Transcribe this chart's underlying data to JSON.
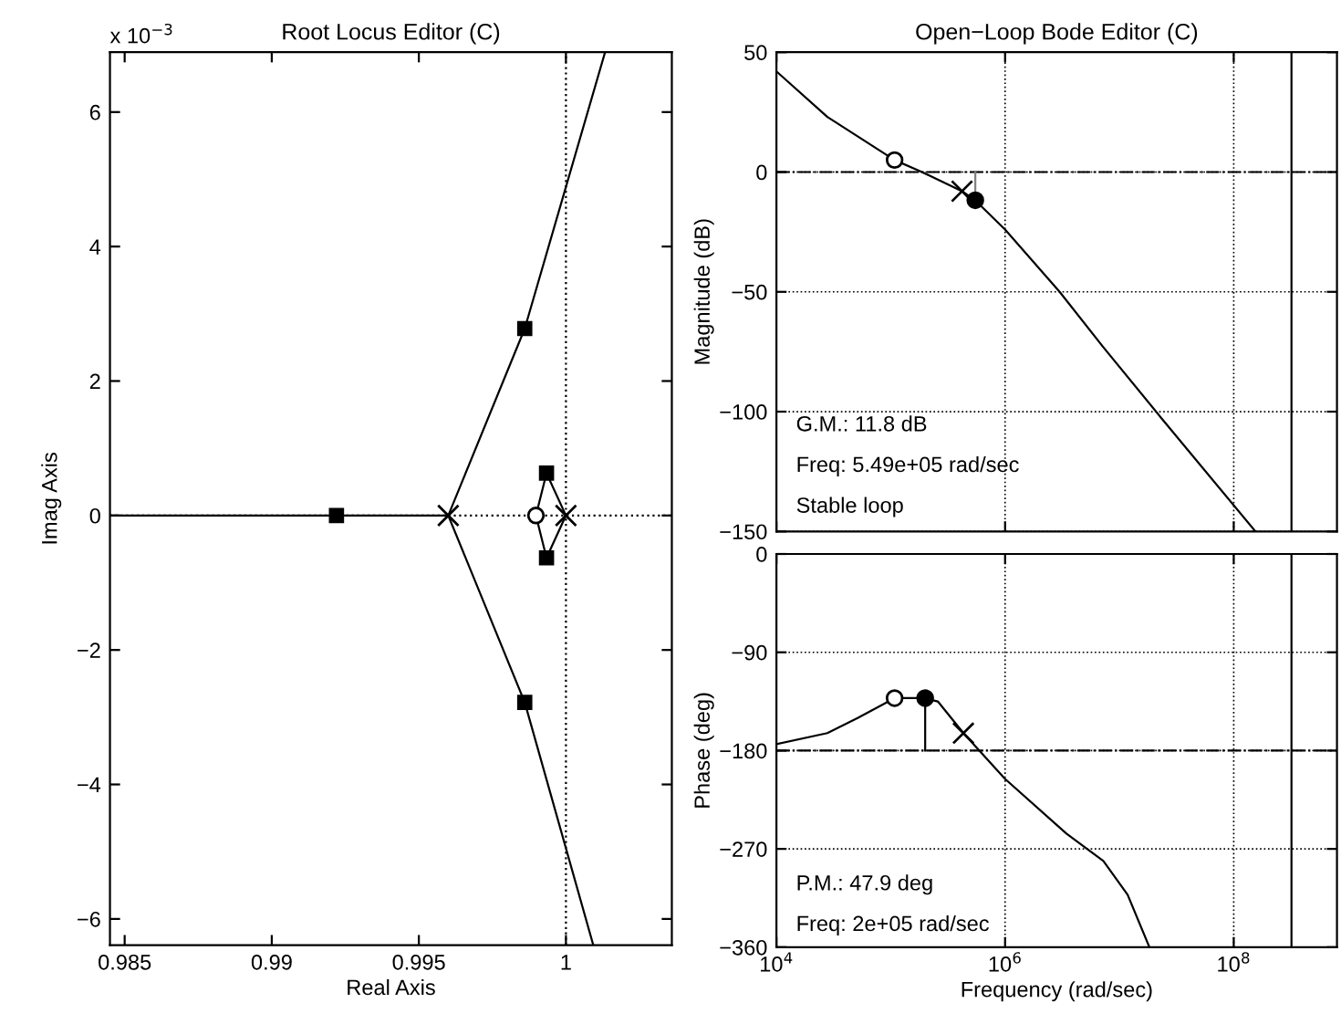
{
  "chart_data": [
    {
      "type": "line",
      "title": "Root Locus Editor (C)",
      "xlabel": "Real Axis",
      "ylabel": "Imag Axis",
      "xlim": [
        0.9845,
        1.0036
      ],
      "ylim": [
        -6.39,
        6.89
      ],
      "xticks": [
        0.985,
        0.99,
        0.995,
        1
      ],
      "yticks": [
        -6,
        -4,
        -2,
        0,
        2,
        4,
        6
      ],
      "ref_lines": [
        {
          "axis": "x",
          "value": 1,
          "line_style": "dotted",
          "color": "#000000"
        },
        {
          "axis": "y",
          "value": 0,
          "line_style": "dotted",
          "color": "#000000"
        }
      ],
      "annotations": [
        "x 10$^{−3}$"
      ],
      "series": [
        {
          "color": "#000000",
          "x": [
            0.9845,
            0.996
          ],
          "values": [
            0,
            0
          ]
        },
        {
          "color": "#000000",
          "x": [
            0.996,
            0.9986,
            1.00133
          ],
          "values": [
            0,
            2.78,
            6.89
          ]
        },
        {
          "color": "#000000",
          "x": [
            0.996,
            0.9986,
            1.00093
          ],
          "values": [
            0,
            -2.78,
            -6.39
          ]
        },
        {
          "color": "#000000",
          "x": [
            0.99898,
            0.99934,
            1.0
          ],
          "values": [
            0,
            0.63,
            0
          ]
        },
        {
          "color": "#000000",
          "x": [
            0.99898,
            0.99934,
            1.0
          ],
          "values": [
            0,
            -0.63,
            0
          ]
        },
        {
          "type": "scatter",
          "marker": "cross",
          "color": "#000000",
          "x": [
            0.996,
            1.0
          ],
          "values": [
            0,
            0
          ]
        },
        {
          "type": "scatter",
          "marker": "circle",
          "color": "#ffffff",
          "x": [
            0.99898
          ],
          "values": [
            0
          ]
        },
        {
          "type": "scatter",
          "marker": "square",
          "color": "#000000",
          "x": [
            0.9922,
            0.9986,
            0.9986,
            0.99934,
            0.99934
          ],
          "values": [
            0,
            2.78,
            -2.78,
            0.63,
            -0.63
          ]
        }
      ]
    },
    {
      "type": "line",
      "title": "Open−Loop Bode Editor (C)",
      "ylabel": "Magnitude (dB)",
      "log": "x",
      "xlim": [
        10000,
        800000000
      ],
      "ylim": [
        -150,
        50
      ],
      "xticks": [
        {
          "value": 10000,
          "label": null
        },
        {
          "value": 1000000,
          "label": null
        },
        {
          "value": 100000000,
          "label": null
        }
      ],
      "yticks": [
        -150,
        -100,
        -50,
        0,
        50
      ],
      "tick_labels": "y",
      "grid": true,
      "ref_lines": [
        {
          "axis": "y",
          "value": 0,
          "line_style": "dashdot",
          "color": "#000000"
        },
        {
          "axis": "x",
          "value": 320000000,
          "line_style": "solid",
          "color": "#000000"
        }
      ],
      "annotations": [
        "G.M.: 11.8 dB",
        "Freq: 5.49e+05 rad/sec",
        "Stable loop"
      ],
      "series": [
        {
          "color": "#000000",
          "x": [
            10000,
            27900,
            108000,
            178000,
            420000,
            553000,
            1000000,
            3000000,
            7200000,
            24500000,
            155000000
          ],
          "values": [
            42,
            23,
            5,
            0.5,
            -8,
            -12,
            -24,
            -50,
            -73,
            -104,
            -150
          ]
        },
        {
          "color": "#808080",
          "x": [
            549000,
            549000
          ],
          "values": [
            -11.8,
            0
          ]
        },
        {
          "type": "scatter",
          "marker": "circle",
          "color": "#ffffff",
          "x": [
            108000
          ],
          "values": [
            5
          ]
        },
        {
          "type": "scatter",
          "marker": "cross",
          "color": "#000000",
          "x": [
            420000
          ],
          "values": [
            -8
          ]
        },
        {
          "type": "scatter",
          "marker": "circle",
          "color": "#000000",
          "x": [
            549000
          ],
          "values": [
            -11.8
          ]
        }
      ]
    },
    {
      "type": "line",
      "xlabel": "Frequency (rad/sec)",
      "ylabel": "Phase (deg)",
      "log": "x",
      "xlim": [
        10000,
        800000000
      ],
      "ylim": [
        -360,
        0
      ],
      "xticks": [
        {
          "value": 10000,
          "label": "10$^{4}$"
        },
        {
          "value": 1000000,
          "label": "10$^{6}$"
        },
        {
          "value": 100000000,
          "label": "10$^{8}$"
        }
      ],
      "yticks": [
        -360,
        -270,
        -180,
        -90,
        0
      ],
      "grid": true,
      "ref_lines": [
        {
          "axis": "y",
          "value": -180,
          "line_style": "dashdot",
          "color": "#000000"
        },
        {
          "axis": "x",
          "value": 320000000,
          "line_style": "solid",
          "color": "#000000"
        }
      ],
      "annotations": [
        "P.M.: 47.9 deg",
        "Freq: 2e+05 rad/sec"
      ],
      "series": [
        {
          "color": "#000000",
          "x": [
            10000,
            27900,
            51700,
            108000,
            195000,
            258000,
            432000,
            1000000,
            3440000,
            7240000,
            11800000,
            18300000
          ],
          "values": [
            -174,
            -164,
            -150,
            -132,
            -132,
            -135,
            -164,
            -206,
            -256,
            -281,
            -312,
            -360
          ]
        },
        {
          "color": "#000000",
          "x": [
            200000,
            200000
          ],
          "values": [
            -180,
            -132
          ]
        },
        {
          "type": "scatter",
          "marker": "circle",
          "color": "#ffffff",
          "x": [
            108000
          ],
          "values": [
            -132
          ]
        },
        {
          "type": "scatter",
          "marker": "circle",
          "color": "#000000",
          "x": [
            200000
          ],
          "values": [
            -132
          ]
        },
        {
          "type": "scatter",
          "marker": "cross",
          "color": "#000000",
          "x": [
            432000
          ],
          "values": [
            -164
          ]
        }
      ]
    }
  ]
}
